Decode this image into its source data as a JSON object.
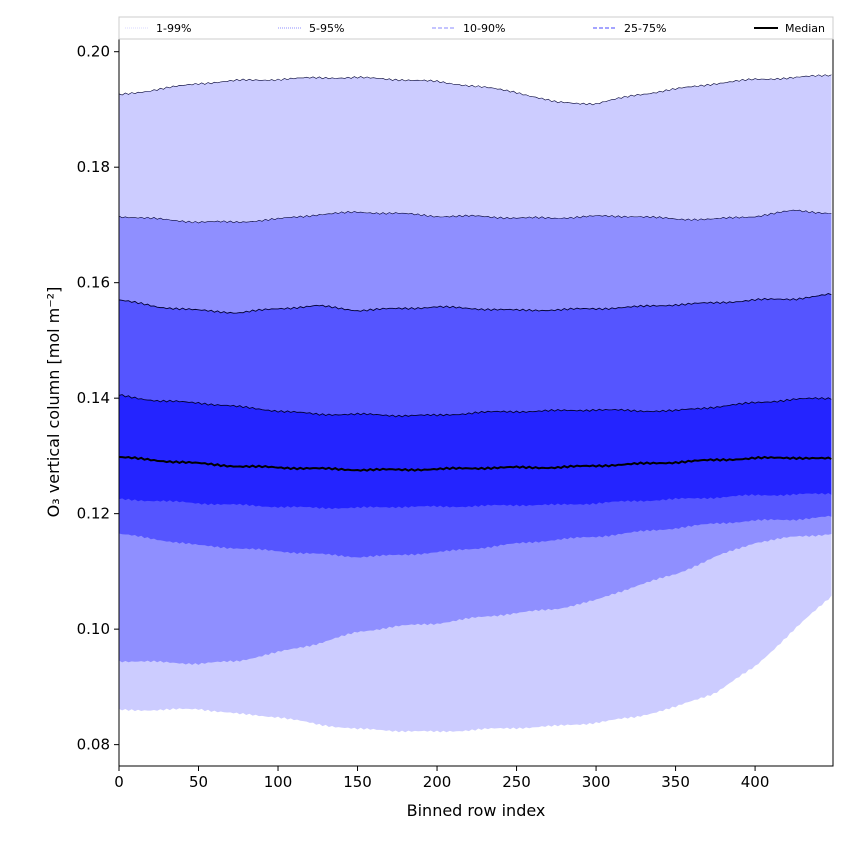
{
  "chart_data": {
    "type": "area",
    "title": "",
    "xlabel": "Binned row index",
    "ylabel": "O₃ vertical column [mol m⁻²]",
    "xlim": [
      0,
      449
    ],
    "ylim": [
      0.0763,
      0.2022
    ],
    "x_ticks": [
      0,
      50,
      100,
      150,
      200,
      250,
      300,
      350,
      400
    ],
    "y_ticks": [
      0.08,
      0.1,
      0.12,
      0.14,
      0.16,
      0.18,
      0.2
    ],
    "y_tick_labels": [
      "0.08",
      "0.10",
      "0.12",
      "0.14",
      "0.16",
      "0.18",
      "0.20"
    ],
    "legend": {
      "position": "top",
      "entries": [
        {
          "label": "1-99%",
          "style": "dotted",
          "color": "#d8d8ff"
        },
        {
          "label": "5-95%",
          "style": "dotted",
          "color": "#9090ff"
        },
        {
          "label": "10-90%",
          "style": "dashed",
          "color": "#8a8aff"
        },
        {
          "label": "25-75%",
          "style": "dashed",
          "color": "#4a4aff"
        },
        {
          "label": "Median",
          "style": "solid",
          "color": "#000000"
        }
      ]
    },
    "x": [
      0,
      25,
      50,
      75,
      100,
      125,
      150,
      175,
      200,
      225,
      250,
      275,
      300,
      325,
      350,
      375,
      400,
      425,
      449
    ],
    "series": [
      {
        "name": "1%",
        "values": [
          0.086,
          0.086,
          0.0862,
          0.0853,
          0.0848,
          0.0835,
          0.0827,
          0.0824,
          0.0822,
          0.0826,
          0.0829,
          0.0832,
          0.0838,
          0.0848,
          0.0865,
          0.089,
          0.0935,
          0.1,
          0.106
        ]
      },
      {
        "name": "5%",
        "values": [
          0.0945,
          0.0943,
          0.094,
          0.0945,
          0.096,
          0.0975,
          0.0995,
          0.1005,
          0.101,
          0.102,
          0.1028,
          0.1035,
          0.105,
          0.1075,
          0.1095,
          0.1125,
          0.115,
          0.116,
          0.1165
        ]
      },
      {
        "name": "10%",
        "values": [
          0.1165,
          0.1155,
          0.1145,
          0.114,
          0.1135,
          0.113,
          0.1125,
          0.1128,
          0.1133,
          0.114,
          0.1148,
          0.1155,
          0.116,
          0.1168,
          0.1175,
          0.1183,
          0.1188,
          0.119,
          0.1195
        ]
      },
      {
        "name": "25%",
        "values": [
          0.1225,
          0.1222,
          0.1218,
          0.1215,
          0.1212,
          0.121,
          0.121,
          0.1212,
          0.1212,
          0.1213,
          0.1215,
          0.1215,
          0.1218,
          0.1222,
          0.1225,
          0.1228,
          0.1232,
          0.1233,
          0.1235
        ]
      },
      {
        "name": "Median",
        "values": [
          0.1298,
          0.1292,
          0.1287,
          0.1282,
          0.128,
          0.1278,
          0.1276,
          0.1276,
          0.1277,
          0.1279,
          0.128,
          0.128,
          0.1283,
          0.1286,
          0.1289,
          0.1293,
          0.1296,
          0.1297,
          0.1295
        ]
      },
      {
        "name": "75%",
        "values": [
          0.1405,
          0.1395,
          0.1392,
          0.1385,
          0.1378,
          0.1372,
          0.1372,
          0.137,
          0.137,
          0.1375,
          0.1377,
          0.1378,
          0.138,
          0.1378,
          0.1378,
          0.1385,
          0.1392,
          0.1398,
          0.14
        ]
      },
      {
        "name": "90%",
        "values": [
          0.157,
          0.1558,
          0.1552,
          0.1548,
          0.1555,
          0.156,
          0.1552,
          0.1555,
          0.1558,
          0.1555,
          0.1552,
          0.1553,
          0.1555,
          0.1558,
          0.1562,
          0.1565,
          0.157,
          0.1572,
          0.158
        ]
      },
      {
        "name": "95%",
        "values": [
          0.1715,
          0.171,
          0.1705,
          0.1705,
          0.171,
          0.1718,
          0.1722,
          0.172,
          0.1715,
          0.1715,
          0.1712,
          0.1712,
          0.1715,
          0.1715,
          0.171,
          0.171,
          0.1715,
          0.1725,
          0.172
        ]
      },
      {
        "name": "99%",
        "values": [
          0.1925,
          0.1935,
          0.1945,
          0.195,
          0.1952,
          0.1955,
          0.1955,
          0.1952,
          0.1948,
          0.194,
          0.193,
          0.1912,
          0.191,
          0.1925,
          0.1935,
          0.1945,
          0.1952,
          0.1955,
          0.196
        ]
      }
    ],
    "bands": [
      {
        "name": "1-99%",
        "lower": "1%",
        "upper": "99%",
        "color": "#ccccff"
      },
      {
        "name": "5-95%",
        "lower": "5%",
        "upper": "95%",
        "color": "#8f8fff"
      },
      {
        "name": "10-90%",
        "lower": "10%",
        "upper": "90%",
        "color": "#5555ff"
      },
      {
        "name": "25-75%",
        "lower": "25%",
        "upper": "75%",
        "color": "#2424ff"
      }
    ]
  }
}
